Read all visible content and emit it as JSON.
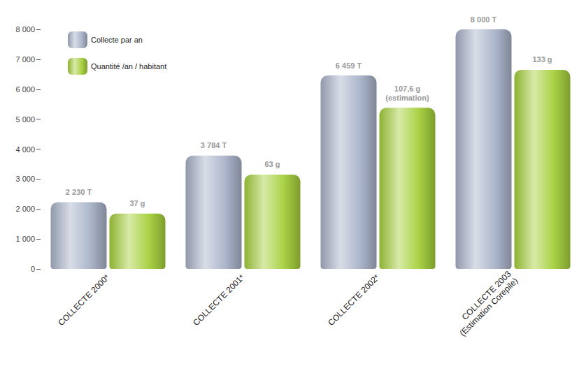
{
  "chart_data": {
    "type": "bar",
    "categories": [
      "COLLECTE 2000*",
      "COLLECTE 2001*",
      "COLLECTE 2002*",
      "COLLECTE 2003\n(Estimation Corepile)"
    ],
    "series": [
      {
        "name": "Collecte par an",
        "color": "#a9b3c9",
        "values": [
          2230,
          3784,
          6459,
          8000
        ],
        "value_labels": [
          "2 230 T",
          "3 784 T",
          "6 459 T",
          "8 000 T"
        ]
      },
      {
        "name": "Quantité /an / habitant",
        "color": "#a6d13c",
        "axis": "y2",
        "values": [
          37,
          63,
          107.6,
          133
        ],
        "value_labels": [
          "37 g",
          "63 g",
          "107,6 g\n(estimation)",
          "133 g"
        ]
      }
    ],
    "ylim": [
      0,
      8000
    ],
    "yticks": [
      0,
      {
        "value": 1000,
        "label": "1 000"
      },
      {
        "value": 2000,
        "label": "2 000"
      },
      {
        "value": 3000,
        "label": "3 000"
      },
      {
        "value": 4000,
        "label": "4 000"
      },
      {
        "value": 5000,
        "label": "5 000"
      },
      {
        "value": 6000,
        "label": "6 000"
      },
      {
        "value": 7000,
        "label": "7 000"
      },
      {
        "value": 8000,
        "label": "8 000"
      }
    ],
    "y2lim": [
      0,
      160
    ],
    "tick_labels": "y",
    "grid": false,
    "legend": "upper left",
    "data_labels": true
  }
}
